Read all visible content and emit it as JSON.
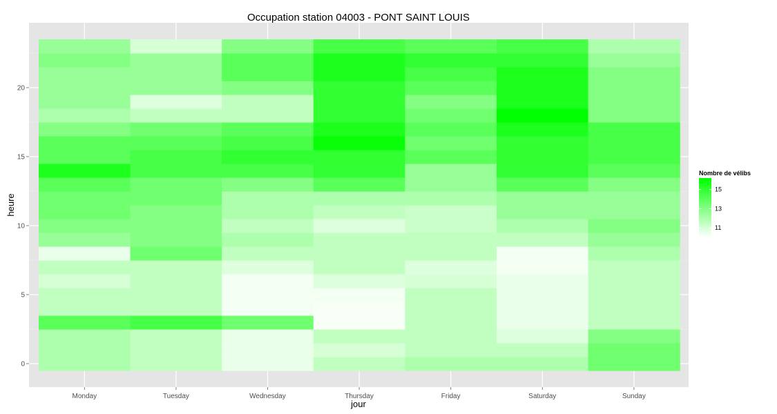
{
  "chart_data": {
    "type": "heatmap",
    "title": "Occupation station 04003 - PONT SAINT LOUIS",
    "xlabel": "jour",
    "ylabel": "heure",
    "x_categories": [
      "Monday",
      "Tuesday",
      "Wednesday",
      "Thursday",
      "Friday",
      "Saturday",
      "Sunday"
    ],
    "y_hours": [
      0,
      1,
      2,
      3,
      4,
      5,
      6,
      7,
      8,
      9,
      10,
      11,
      12,
      13,
      14,
      15,
      16,
      17,
      18,
      19,
      20,
      21,
      22,
      23
    ],
    "y_ticks": [
      0,
      5,
      10,
      15,
      20
    ],
    "y_tick_labels": [
      "0",
      "5",
      "10",
      "15",
      "20"
    ],
    "ylim": [
      -0.5,
      23.5
    ],
    "grid": true,
    "color_low": "#ffffff",
    "color_high": "#00ff00",
    "value_range": [
      10,
      16.2
    ],
    "legend": {
      "title": "Nombre de vélibs",
      "position": "right",
      "breaks": [
        11,
        13,
        15
      ],
      "break_labels": [
        "11",
        "13",
        "15"
      ]
    },
    "values": {
      "Monday": [
        12.0,
        12.0,
        12.0,
        14.0,
        11.5,
        11.5,
        11.0,
        11.5,
        10.5,
        12.5,
        13.0,
        13.5,
        13.5,
        14.0,
        15.5,
        14.0,
        14.0,
        13.0,
        12.0,
        12.5,
        12.5,
        12.5,
        13.0,
        12.5
      ],
      "Tuesday": [
        11.5,
        11.5,
        11.5,
        14.5,
        11.5,
        11.5,
        11.5,
        11.5,
        13.5,
        13.0,
        13.0,
        13.0,
        13.5,
        13.5,
        14.5,
        14.5,
        14.0,
        13.5,
        11.5,
        10.8,
        12.5,
        12.5,
        12.5,
        11.0
      ],
      "Wednesday": [
        10.5,
        10.5,
        10.5,
        13.5,
        10.3,
        10.3,
        10.3,
        10.8,
        11.5,
        12.0,
        11.5,
        12.0,
        12.0,
        13.0,
        14.5,
        15.0,
        14.5,
        14.0,
        11.5,
        11.5,
        13.0,
        14.0,
        14.0,
        13.0
      ],
      "Thursday": [
        11.5,
        11.0,
        11.5,
        10.2,
        10.2,
        10.3,
        10.8,
        11.5,
        11.5,
        11.5,
        10.8,
        11.5,
        12.0,
        14.0,
        15.0,
        15.0,
        16.0,
        15.5,
        15.0,
        15.0,
        15.0,
        15.5,
        15.5,
        14.5
      ],
      "Friday": [
        12.0,
        11.5,
        11.5,
        11.5,
        11.5,
        11.5,
        11.0,
        10.8,
        11.5,
        11.5,
        11.3,
        11.3,
        12.0,
        12.5,
        12.5,
        14.0,
        13.5,
        14.0,
        13.5,
        13.0,
        14.0,
        14.5,
        15.0,
        14.0
      ],
      "Saturday": [
        12.0,
        11.5,
        10.8,
        10.5,
        10.5,
        10.5,
        10.5,
        10.3,
        10.3,
        11.5,
        12.0,
        12.5,
        12.5,
        14.0,
        15.0,
        15.0,
        15.0,
        15.5,
        16.2,
        15.5,
        15.5,
        15.5,
        15.0,
        14.5
      ],
      "Sunday": [
        13.5,
        13.5,
        13.0,
        11.5,
        11.5,
        11.5,
        11.5,
        11.5,
        12.0,
        12.5,
        13.0,
        12.5,
        12.5,
        13.0,
        14.0,
        14.5,
        14.5,
        14.5,
        13.0,
        13.0,
        13.0,
        13.0,
        12.5,
        12.0
      ]
    }
  }
}
